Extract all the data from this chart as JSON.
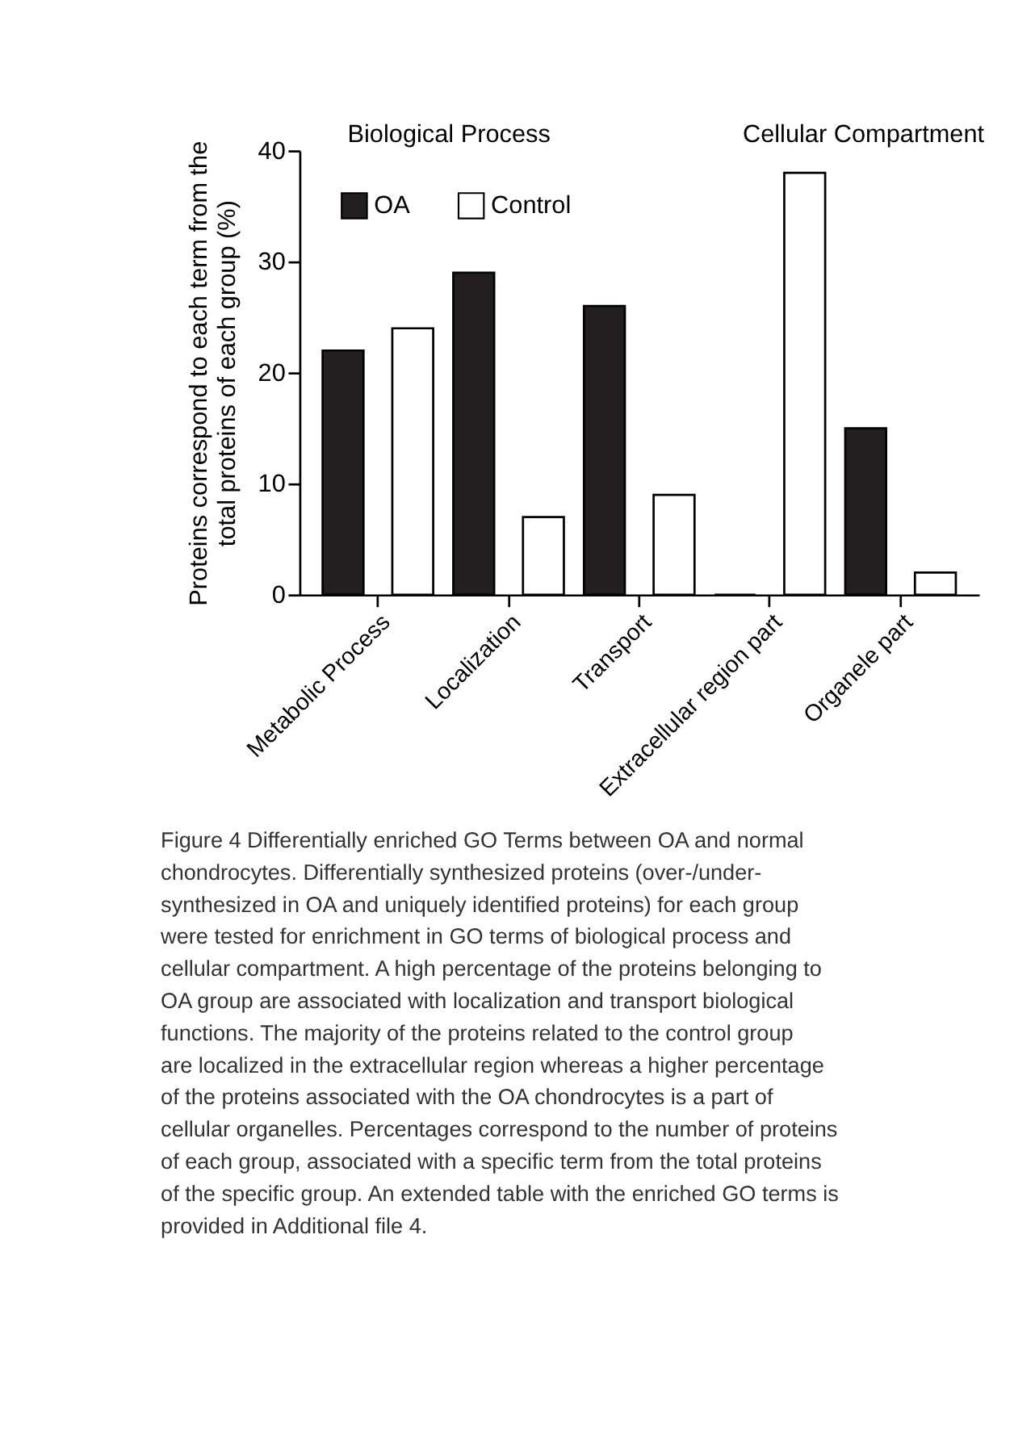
{
  "chart_data": {
    "type": "bar",
    "ylabel": "Proteins correspond to each term from the total proteins of each group (%)",
    "categories": [
      "Metabolic Process",
      "Localization",
      "Transport",
      "Extracellular region part",
      "Organele part"
    ],
    "series": [
      {
        "name": "OA",
        "color": "#231f20",
        "values": [
          22,
          29,
          26,
          0,
          15
        ]
      },
      {
        "name": "Control",
        "color": "#ffffff",
        "values": [
          24,
          7,
          9,
          38,
          2
        ]
      }
    ],
    "ylim": [
      0,
      40
    ],
    "yticks": [
      0,
      10,
      20,
      30,
      40
    ],
    "grid": false,
    "legend": "top left",
    "annotations": [
      "Biological Process",
      "Cellular Compartment",
      "Figure 4 Differentially enriched GO Terms between OA and normal chondrocytes. Differentially synthesized proteins (over-/under-synthesized in OA and uniquely identified proteins) for each group were tested for enrichment in GO terms of biological process and cellular compartment. A high percentage of the proteins belonging to OA group are associated with localization and transport biological functions. The majority of the proteins related to the control group are localized in the extracellular region whereas a higher percentage of the proteins associated with the OA chondrocytes is a part of cellular organelles. Percentages correspond to the number of proteins of each group, associated with a specific term from the total proteins of the specific group. An extended table with the enriched GO terms is provided in Additional file 4."
    ]
  }
}
